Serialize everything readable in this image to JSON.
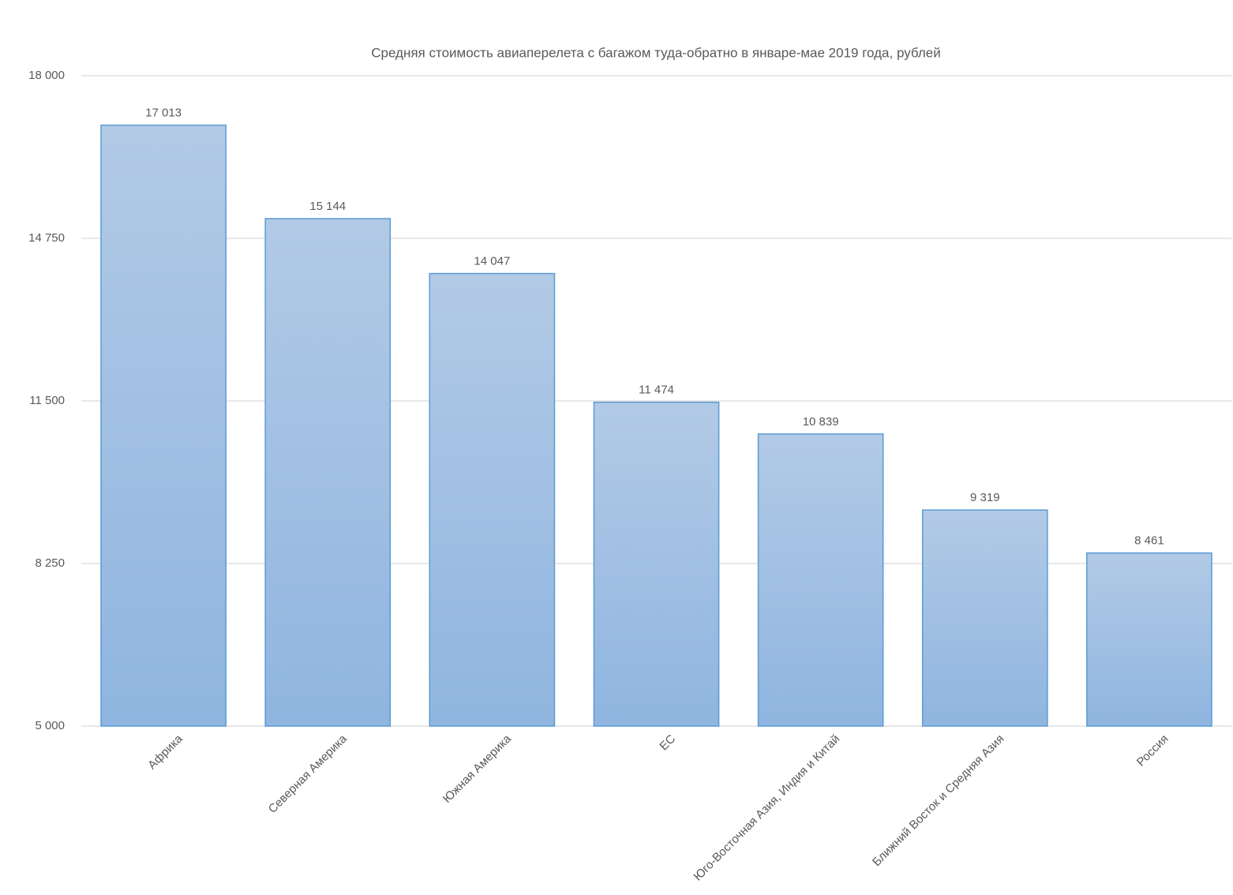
{
  "chart_data": {
    "type": "bar",
    "title": "Средняя стоимость авиаперелета с багажом туда-обратно в январе-мае 2019 года, рублей",
    "categories": [
      "Африка",
      "Северная Америка",
      "Южная Америка",
      "ЕС",
      "Юго-Восточная Азия, Индия и Китай",
      "Ближний Восток и Средняя Азия",
      "Россия"
    ],
    "values": [
      17013,
      15144,
      14047,
      11474,
      10839,
      9319,
      8461
    ],
    "value_labels": [
      "17 013",
      "15 144",
      "14 047",
      "11 474",
      "10 839",
      "9 319",
      "8 461"
    ],
    "color": "#5b9bd5",
    "ylim": [
      5000,
      18000
    ],
    "yticks": [
      {
        "value": 5000,
        "label": "5 000"
      },
      {
        "value": 8250,
        "label": "8 250"
      },
      {
        "value": 11500,
        "label": "11 500"
      },
      {
        "value": 14750,
        "label": "14 750"
      },
      {
        "value": 18000,
        "label": "18 000"
      }
    ],
    "grid": true
  }
}
